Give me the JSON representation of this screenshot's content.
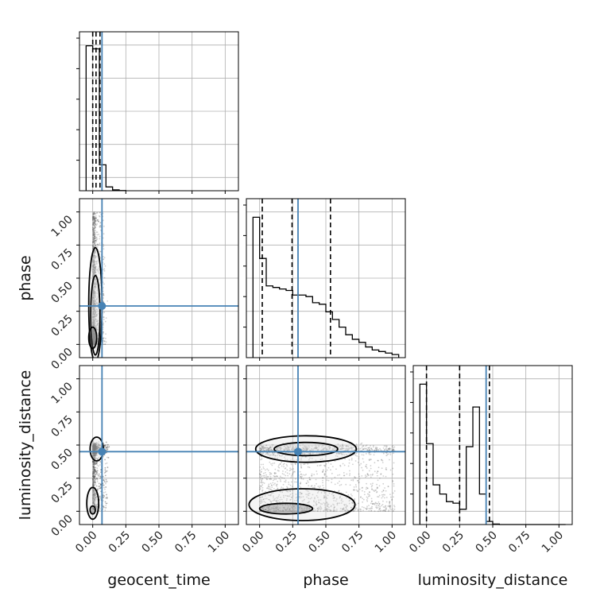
{
  "chart_data": {
    "type": "corner",
    "parameters": [
      "geocent_time",
      "phase",
      "luminosity_distance"
    ],
    "truths": {
      "geocent_time": 0.07,
      "phase": 0.29,
      "luminosity_distance": 0.45
    },
    "axis_range": [
      -0.1,
      1.1
    ],
    "tick_labels": [
      "0.00",
      "0.25",
      "0.50",
      "0.75",
      "1.00"
    ],
    "grid": true,
    "colors": {
      "truth": "#4682b4",
      "hist": "#000000",
      "points": "#808080",
      "contour": "#000000"
    },
    "histograms": {
      "geocent_time": {
        "bin_edges": [
          -0.05,
          0.0,
          0.05,
          0.1,
          0.15,
          0.2,
          0.25
        ],
        "counts": [
          0.95,
          0.93,
          0.17,
          0.025,
          0.006,
          0.001
        ],
        "quantiles": [
          0.0,
          0.025,
          0.055
        ]
      },
      "phase": {
        "bin_edges": [
          -0.05,
          0.0,
          0.05,
          0.1,
          0.15,
          0.2,
          0.25,
          0.3,
          0.35,
          0.4,
          0.45,
          0.5,
          0.55,
          0.6,
          0.65,
          0.7,
          0.75,
          0.8,
          0.85,
          0.9,
          0.95,
          1.0,
          1.05
        ],
        "counts": [
          0.92,
          0.65,
          0.47,
          0.46,
          0.45,
          0.44,
          0.41,
          0.41,
          0.4,
          0.36,
          0.35,
          0.3,
          0.25,
          0.2,
          0.15,
          0.12,
          0.1,
          0.07,
          0.05,
          0.04,
          0.03,
          0.02
        ],
        "quantiles": [
          0.02,
          0.245,
          0.535
        ]
      },
      "luminosity_distance": {
        "bin_edges": [
          -0.05,
          0.0,
          0.05,
          0.1,
          0.15,
          0.2,
          0.25,
          0.3,
          0.35,
          0.4,
          0.45,
          0.5,
          0.55,
          0.6,
          0.65,
          0.7,
          0.75,
          0.8,
          0.85,
          0.9,
          0.95,
          1.0,
          1.05
        ],
        "counts": [
          0.92,
          0.53,
          0.26,
          0.2,
          0.15,
          0.14,
          0.1,
          0.51,
          0.77,
          0.2,
          0.02,
          0.003,
          0.0,
          0.0,
          0.0,
          0.0,
          0.0,
          0.0,
          0.0,
          0.0,
          0.0,
          0.0
        ],
        "quantiles": [
          0.0,
          0.25,
          0.475
        ]
      }
    }
  }
}
